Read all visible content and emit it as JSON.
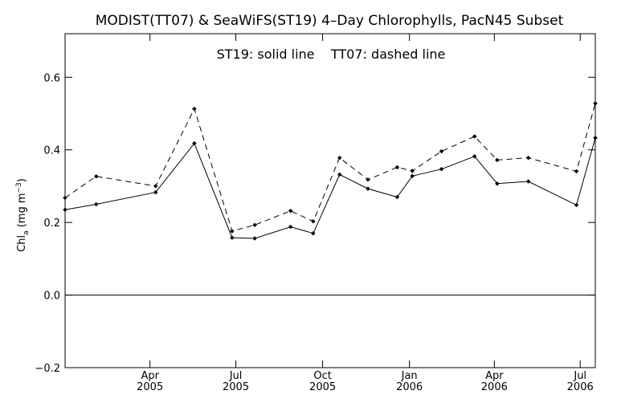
{
  "chart_data": {
    "type": "line",
    "title": "MODIST(TT07) & SeaWiFS(ST19) 4–Day Chlorophylls, PacN45 Subset",
    "annotation": "ST19: solid line    TT07: dashed line",
    "ylabel": "Chl",
    "ylabel_subscript": "a",
    "ylabel_units": " (mg m",
    "ylabel_units_sup": "−3",
    "ylabel_units_end": ")",
    "ylim": [
      -0.2,
      0.72
    ],
    "yticks": [
      {
        "value": -0.2,
        "label": "−0.2"
      },
      {
        "value": 0.0,
        "label": "0.0"
      },
      {
        "value": 0.2,
        "label": "0.2"
      },
      {
        "value": 0.4,
        "label": "0.4"
      },
      {
        "value": 0.6,
        "label": "0.6"
      }
    ],
    "xlim": [
      "2005-01-01",
      "2006-07-17"
    ],
    "xticks": [
      {
        "date": "2005-04-01",
        "line1": "Apr",
        "line2": "2005"
      },
      {
        "date": "2005-07-01",
        "line1": "Jul",
        "line2": "2005"
      },
      {
        "date": "2005-10-01",
        "line1": "Oct",
        "line2": "2005"
      },
      {
        "date": "2006-01-01",
        "line1": "Jan",
        "line2": "2006"
      },
      {
        "date": "2006-04-01",
        "line1": "Apr",
        "line2": "2006"
      },
      {
        "date": "2006-07-01",
        "line1": "Jul",
        "line2": "2006"
      }
    ],
    "zero_line": 0.0,
    "grid": false,
    "series": [
      {
        "name": "ST19",
        "style": "solid",
        "x": [
          "2005-01-01",
          "2005-02-03",
          "2005-04-07",
          "2005-05-18",
          "2005-06-27",
          "2005-07-21",
          "2005-08-28",
          "2005-09-21",
          "2005-10-19",
          "2005-11-18",
          "2005-12-19",
          "2006-01-04",
          "2006-02-04",
          "2006-03-11",
          "2006-04-04",
          "2006-05-07",
          "2006-06-27",
          "2006-07-17"
        ],
        "values": [
          0.235,
          0.25,
          0.283,
          0.418,
          0.158,
          0.156,
          0.188,
          0.17,
          0.332,
          0.293,
          0.27,
          0.328,
          0.347,
          0.382,
          0.307,
          0.313,
          0.248,
          0.433
        ]
      },
      {
        "name": "TT07",
        "style": "dashed",
        "x": [
          "2005-01-01",
          "2005-02-03",
          "2005-04-07",
          "2005-05-18",
          "2005-06-27",
          "2005-07-21",
          "2005-08-28",
          "2005-09-21",
          "2005-10-19",
          "2005-11-18",
          "2005-12-19",
          "2006-01-04",
          "2006-02-04",
          "2006-03-11",
          "2006-04-04",
          "2006-05-07",
          "2006-06-27",
          "2006-07-17"
        ],
        "values": [
          0.268,
          0.327,
          0.3,
          0.513,
          0.176,
          0.193,
          0.232,
          0.203,
          0.378,
          0.318,
          0.352,
          0.342,
          0.396,
          0.437,
          0.372,
          0.378,
          0.341,
          0.528
        ]
      }
    ]
  }
}
